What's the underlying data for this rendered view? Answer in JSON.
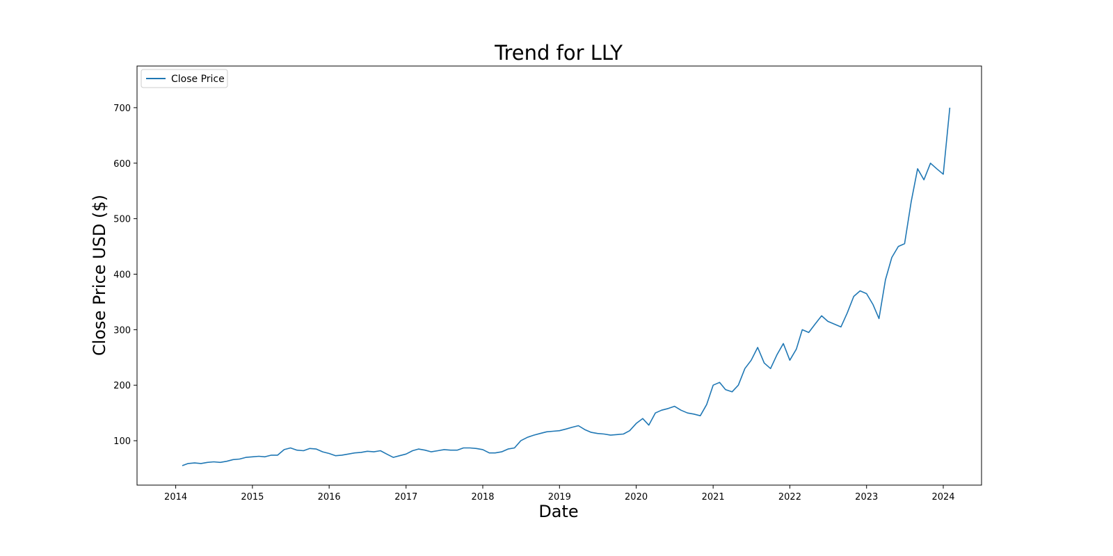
{
  "chart_data": {
    "type": "line",
    "title": "Trend for LLY",
    "xlabel": "Date",
    "ylabel": "Close Price USD ($)",
    "x_ticks": [
      "2014",
      "2015",
      "2016",
      "2017",
      "2018",
      "2019",
      "2020",
      "2021",
      "2022",
      "2023",
      "2024"
    ],
    "y_ticks": [
      100,
      200,
      300,
      400,
      500,
      600,
      700
    ],
    "xlim": [
      "2013-07-01",
      "2024-07-01"
    ],
    "ylim": [
      20,
      775
    ],
    "grid": false,
    "legend": {
      "position": "upper-left",
      "entries": [
        "Close Price"
      ]
    },
    "colors": {
      "series": "#1f77b4",
      "axes": "#000000",
      "legend_border": "#cccccc"
    },
    "series": [
      {
        "name": "Close Price",
        "x": [
          "2014-02-01",
          "2014-03-01",
          "2014-04-01",
          "2014-05-01",
          "2014-06-01",
          "2014-07-01",
          "2014-08-01",
          "2014-09-01",
          "2014-10-01",
          "2014-11-01",
          "2014-12-01",
          "2015-01-01",
          "2015-02-01",
          "2015-03-01",
          "2015-04-01",
          "2015-05-01",
          "2015-06-01",
          "2015-07-01",
          "2015-08-01",
          "2015-09-01",
          "2015-10-01",
          "2015-11-01",
          "2015-12-01",
          "2016-01-01",
          "2016-02-01",
          "2016-03-01",
          "2016-04-01",
          "2016-05-01",
          "2016-06-01",
          "2016-07-01",
          "2016-08-01",
          "2016-09-01",
          "2016-10-01",
          "2016-11-01",
          "2016-12-01",
          "2017-01-01",
          "2017-02-01",
          "2017-03-01",
          "2017-04-01",
          "2017-05-01",
          "2017-06-01",
          "2017-07-01",
          "2017-08-01",
          "2017-09-01",
          "2017-10-01",
          "2017-11-01",
          "2017-12-01",
          "2018-01-01",
          "2018-02-01",
          "2018-03-01",
          "2018-04-01",
          "2018-05-01",
          "2018-06-01",
          "2018-07-01",
          "2018-08-01",
          "2018-09-01",
          "2018-10-01",
          "2018-11-01",
          "2018-12-01",
          "2019-01-01",
          "2019-02-01",
          "2019-03-01",
          "2019-04-01",
          "2019-05-01",
          "2019-06-01",
          "2019-07-01",
          "2019-08-01",
          "2019-09-01",
          "2019-10-01",
          "2019-11-01",
          "2019-12-01",
          "2020-01-01",
          "2020-02-01",
          "2020-03-01",
          "2020-04-01",
          "2020-05-01",
          "2020-06-01",
          "2020-07-01",
          "2020-08-01",
          "2020-09-01",
          "2020-10-01",
          "2020-11-01",
          "2020-12-01",
          "2021-01-01",
          "2021-02-01",
          "2021-03-01",
          "2021-04-01",
          "2021-05-01",
          "2021-06-01",
          "2021-07-01",
          "2021-08-01",
          "2021-09-01",
          "2021-10-01",
          "2021-11-01",
          "2021-12-01",
          "2022-01-01",
          "2022-02-01",
          "2022-03-01",
          "2022-04-01",
          "2022-05-01",
          "2022-06-01",
          "2022-07-01",
          "2022-08-01",
          "2022-09-01",
          "2022-10-01",
          "2022-11-01",
          "2022-12-01",
          "2023-01-01",
          "2023-02-01",
          "2023-03-01",
          "2023-04-01",
          "2023-05-01",
          "2023-06-01",
          "2023-07-01",
          "2023-08-01",
          "2023-09-01",
          "2023-10-01",
          "2023-11-01",
          "2023-12-01",
          "2024-01-01",
          "2024-02-01"
        ],
        "values": [
          55,
          59,
          60,
          59,
          61,
          62,
          61,
          63,
          66,
          67,
          70,
          71,
          72,
          71,
          74,
          74,
          84,
          87,
          83,
          82,
          86,
          85,
          80,
          77,
          73,
          74,
          76,
          78,
          79,
          81,
          80,
          82,
          76,
          70,
          73,
          76,
          82,
          85,
          83,
          80,
          82,
          84,
          83,
          83,
          87,
          87,
          86,
          84,
          78,
          78,
          80,
          85,
          87,
          100,
          106,
          110,
          113,
          116,
          117,
          118,
          121,
          124,
          127,
          120,
          115,
          113,
          112,
          110,
          111,
          112,
          118,
          131,
          140,
          128,
          150,
          155,
          158,
          162,
          155,
          150,
          148,
          145,
          165,
          200,
          205,
          192,
          188,
          200,
          230,
          245,
          268,
          240,
          230,
          255,
          275,
          245,
          265,
          300,
          295,
          310,
          325,
          315,
          310,
          305,
          330,
          360,
          370,
          365,
          345,
          320,
          390,
          430,
          450,
          455,
          530,
          590,
          570,
          600,
          590,
          580,
          700
        ]
      }
    ]
  }
}
